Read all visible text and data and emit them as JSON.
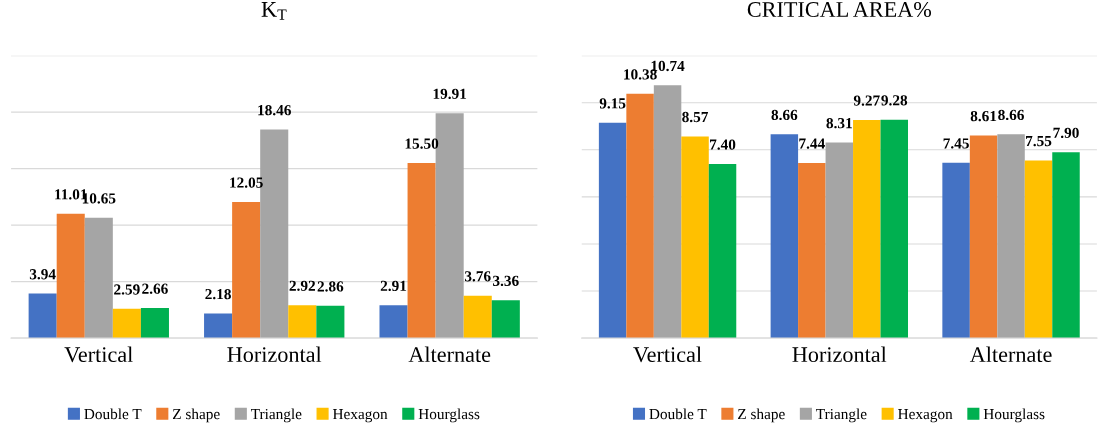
{
  "chart_data": [
    {
      "type": "bar",
      "title": "K$_{T}$",
      "categories": [
        "Vertical",
        "Horizontal",
        "Alternate"
      ],
      "ylim": [
        0,
        25
      ],
      "yticks": [
        {
          "value": 0,
          "label": null
        },
        {
          "value": 5,
          "label": null
        },
        {
          "value": 10,
          "label": null
        },
        {
          "value": 15,
          "label": null
        },
        {
          "value": 20,
          "label": null
        },
        {
          "value": 25,
          "label": null
        }
      ],
      "tick_labels": "x",
      "grid": "y",
      "legend": "bottom",
      "series": [
        {
          "name": "Double T",
          "color": "#4472c4",
          "values": [
            3.94,
            2.18,
            2.91
          ],
          "value_labels": [
            "3.94",
            "2.18",
            "2.91"
          ]
        },
        {
          "name": "Z shape",
          "color": "#ed7d31",
          "values": [
            11.01,
            12.05,
            15.5
          ],
          "value_labels": [
            "11.01",
            "12.05",
            "15.50"
          ]
        },
        {
          "name": "Triangle",
          "color": "#a5a5a5",
          "values": [
            10.65,
            18.46,
            19.91
          ],
          "value_labels": [
            "10.65",
            "18.46",
            "19.91"
          ]
        },
        {
          "name": "Hexagon",
          "color": "#ffc000",
          "values": [
            2.59,
            2.92,
            3.76
          ],
          "value_labels": [
            "2.59",
            "2.92",
            "3.76"
          ]
        },
        {
          "name": "Hourglass",
          "color": "#00b050",
          "values": [
            2.66,
            2.86,
            3.36
          ],
          "value_labels": [
            "2.66",
            "2.86",
            "3.36"
          ]
        }
      ]
    },
    {
      "type": "bar",
      "title": "CRITICAL AREA%",
      "categories": [
        "Vertical",
        "Horizontal",
        "Alternate"
      ],
      "ylim": [
        0,
        12
      ],
      "yticks": [
        {
          "value": 0,
          "label": null
        },
        {
          "value": 2,
          "label": null
        },
        {
          "value": 4,
          "label": null
        },
        {
          "value": 6,
          "label": null
        },
        {
          "value": 8,
          "label": null
        },
        {
          "value": 10,
          "label": null
        },
        {
          "value": 12,
          "label": null
        }
      ],
      "tick_labels": "x",
      "grid": "y",
      "legend": "bottom",
      "series": [
        {
          "name": "Double T",
          "color": "#4472c4",
          "values": [
            9.15,
            8.66,
            7.45
          ],
          "value_labels": [
            "9.15",
            "8.66",
            "7.45"
          ]
        },
        {
          "name": "Z shape",
          "color": "#ed7d31",
          "values": [
            10.38,
            7.44,
            8.61
          ],
          "value_labels": [
            "10.38",
            "7.44",
            "8.61"
          ]
        },
        {
          "name": "Triangle",
          "color": "#a5a5a5",
          "values": [
            10.74,
            8.31,
            8.66
          ],
          "value_labels": [
            "10.74",
            "8.31",
            "8.66"
          ]
        },
        {
          "name": "Hexagon",
          "color": "#ffc000",
          "values": [
            8.57,
            9.27,
            7.55
          ],
          "value_labels": [
            "8.57",
            "9.27",
            "7.55"
          ]
        },
        {
          "name": "Hourglass",
          "color": "#00b050",
          "values": [
            7.4,
            9.28,
            7.9
          ],
          "value_labels": [
            "7.40",
            "9.28",
            "7.90"
          ]
        }
      ]
    }
  ]
}
